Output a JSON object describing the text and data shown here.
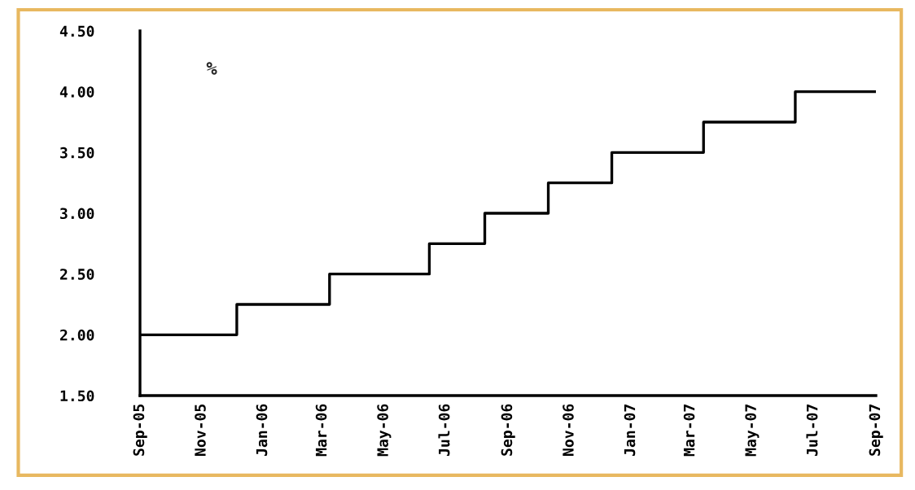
{
  "chart_data": {
    "type": "step",
    "ylabel": "%",
    "color": "#000000",
    "x": [
      "2005-09-01",
      "2005-12-06",
      "2006-03-08",
      "2006-06-15",
      "2006-08-09",
      "2006-10-11",
      "2006-12-13",
      "2007-03-14",
      "2007-06-13",
      "2007-09-01"
    ],
    "values": [
      2.0,
      2.25,
      2.5,
      2.75,
      3.0,
      3.25,
      3.5,
      3.75,
      4.0,
      4.0
    ],
    "xlim": [
      "2005-09-01",
      "2007-09-01"
    ],
    "xticks": [
      {
        "value": "2005-09-01",
        "label": "Sep-05"
      },
      {
        "value": "2005-11-01",
        "label": "Nov-05"
      },
      {
        "value": "2006-01-01",
        "label": "Jan-06"
      },
      {
        "value": "2006-03-01",
        "label": "Mar-06"
      },
      {
        "value": "2006-05-01",
        "label": "May-06"
      },
      {
        "value": "2006-07-01",
        "label": "Jul-06"
      },
      {
        "value": "2006-09-01",
        "label": "Sep-06"
      },
      {
        "value": "2006-11-01",
        "label": "Nov-06"
      },
      {
        "value": "2007-01-01",
        "label": "Jan-07"
      },
      {
        "value": "2007-03-01",
        "label": "Mar-07"
      },
      {
        "value": "2007-05-01",
        "label": "May-07"
      },
      {
        "value": "2007-07-01",
        "label": "Jul-07"
      },
      {
        "value": "2007-09-01",
        "label": "Sep-07"
      }
    ],
    "ylim": [
      1.5,
      4.5
    ],
    "yticks": [
      {
        "value": 1.5,
        "label": "1.50"
      },
      {
        "value": 2.0,
        "label": "2.00"
      },
      {
        "value": 2.5,
        "label": "2.50"
      },
      {
        "value": 3.0,
        "label": "3.00"
      },
      {
        "value": 3.5,
        "label": "3.50"
      },
      {
        "value": 4.0,
        "label": "4.00"
      },
      {
        "value": 4.5,
        "label": "4.50"
      }
    ],
    "grid": false,
    "legend": false
  }
}
